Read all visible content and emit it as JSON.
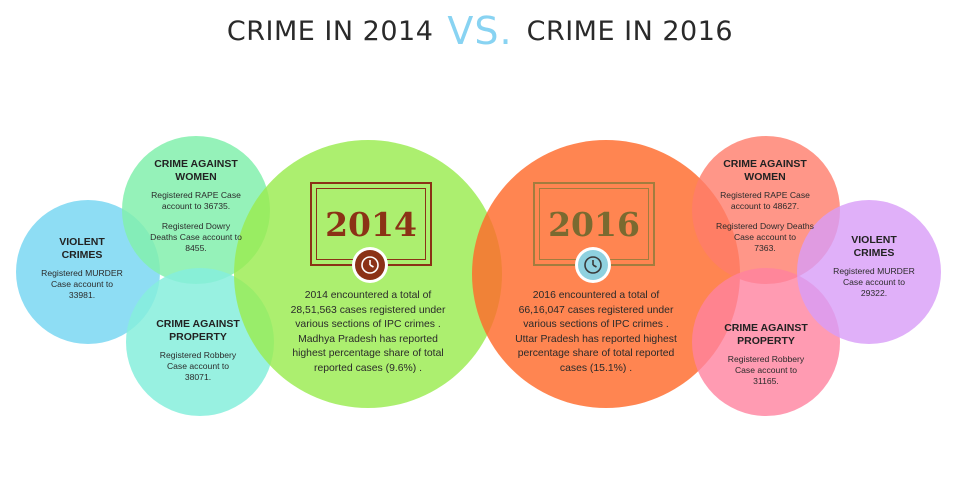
{
  "header": {
    "left": "CRIME IN 2014",
    "vs": "VS.",
    "right": "CRIME IN 2016"
  },
  "year_2014": {
    "year": "2014",
    "summary": "2014 encountered a total of\n28,51,563 cases registered under\nvarious sections of IPC crimes .\nMadhya Pradesh has reported\nhighest percentage share of total\nreported cases (9.6%) .",
    "women": {
      "title": "CRIME AGAINST\nWOMEN",
      "rape": "Registered RAPE Case\naccount to 36735.",
      "dowry": "Registered Dowry\nDeaths Case account to\n8455."
    },
    "violent": {
      "title": "VIOLENT\nCRIMES",
      "murder": "Registered MURDER\nCase account to\n33981."
    },
    "property": {
      "title": "CRIME AGAINST\nPROPERTY",
      "robbery": "Registered Robbery\nCase account to\n38071."
    }
  },
  "year_2016": {
    "year": "2016",
    "summary": "2016 encountered a total of\n66,16,047 cases registered under\nvarious sections of IPC crimes .\nUttar Pradesh has reported highest\npercentage share of total reported\ncases (15.1%) .",
    "women": {
      "title": "CRIME AGAINST\nWOMEN",
      "rape": "Registered RAPE Case\naccount to 48627.",
      "dowry": "Registered Dowry Deaths\nCase account to\n7363."
    },
    "violent": {
      "title": "VIOLENT\nCRIMES",
      "murder": "Registered MURDER\nCase account to\n29322."
    },
    "property": {
      "title": "CRIME AGAINST\nPROPERTY",
      "robbery": "Registered Robbery\nCase account to\n31165."
    }
  },
  "icons": [
    "clock-icon"
  ],
  "colors": {
    "title": "#2a2a2a",
    "vs": "#88d3f2",
    "green_big": "#9aeb4f",
    "orange_big": "#ff6a2b",
    "year_2014_frame": "#8b3216",
    "year_2016_frame": "#a27c3e"
  }
}
